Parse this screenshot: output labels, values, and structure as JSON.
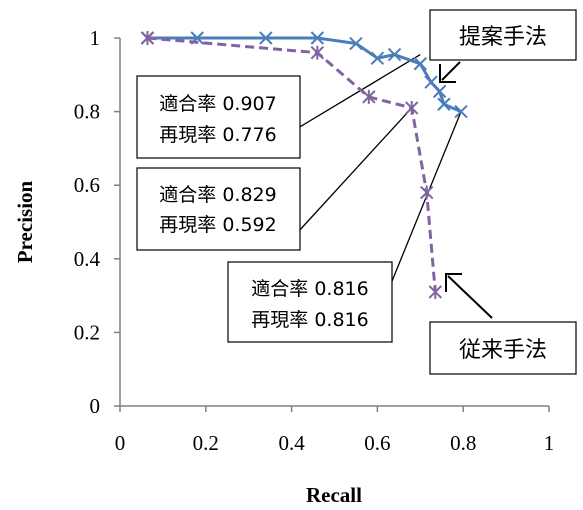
{
  "chart_data": {
    "type": "line",
    "xlabel": "Recall",
    "ylabel": "Precision",
    "xlim": [
      0,
      1
    ],
    "ylim": [
      0,
      1
    ],
    "xticks": [
      "0",
      "0.2",
      "0.4",
      "0.6",
      "0.8",
      "1"
    ],
    "yticks": [
      "0",
      "0.2",
      "0.4",
      "0.6",
      "0.8",
      "1"
    ],
    "grid": false,
    "series": [
      {
        "name": "提案手法",
        "color": "#4a7ebb",
        "style": "solid",
        "marker": "x",
        "points": [
          [
            0.064,
            1.0
          ],
          [
            0.18,
            1.0
          ],
          [
            0.34,
            1.0
          ],
          [
            0.46,
            1.0
          ],
          [
            0.55,
            0.985
          ],
          [
            0.6,
            0.945
          ],
          [
            0.64,
            0.955
          ],
          [
            0.7,
            0.93
          ],
          [
            0.725,
            0.88
          ],
          [
            0.745,
            0.855
          ],
          [
            0.755,
            0.82
          ],
          [
            0.795,
            0.8
          ]
        ]
      },
      {
        "name": "従来手法",
        "color": "#8064a2",
        "style": "dashed",
        "marker": "star",
        "points": [
          [
            0.064,
            1.0
          ],
          [
            0.46,
            0.96
          ],
          [
            0.58,
            0.84
          ],
          [
            0.68,
            0.81
          ],
          [
            0.715,
            0.58
          ],
          [
            0.735,
            0.31
          ]
        ]
      }
    ],
    "annotations": [
      {
        "precision_label": "適合率 0.907",
        "recall_label": "再現率 0.776",
        "points_to": [
          0.7,
          0.955
        ]
      },
      {
        "precision_label": "適合率 0.829",
        "recall_label": "再現率 0.592",
        "points_to": [
          0.68,
          0.81
        ]
      },
      {
        "precision_label": "適合率 0.816",
        "recall_label": "再現率 0.816",
        "points_to": [
          0.795,
          0.8
        ]
      }
    ],
    "series_labels": [
      "提案手法",
      "従来手法"
    ]
  }
}
